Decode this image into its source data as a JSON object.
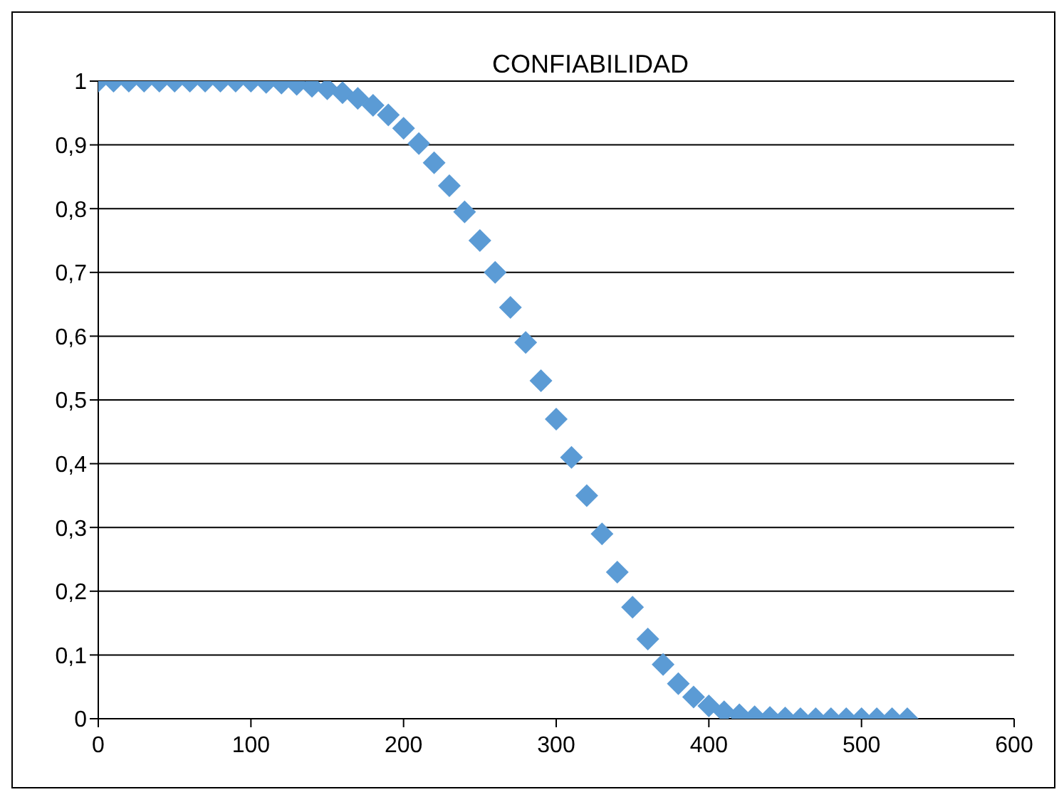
{
  "chart_data": {
    "type": "scatter",
    "title": "CONFIABILIDAD",
    "x": [
      0,
      10,
      20,
      30,
      40,
      50,
      60,
      70,
      80,
      90,
      100,
      110,
      120,
      130,
      140,
      150,
      160,
      170,
      180,
      190,
      200,
      210,
      220,
      230,
      240,
      250,
      260,
      270,
      280,
      290,
      300,
      310,
      320,
      330,
      340,
      350,
      360,
      370,
      380,
      390,
      400,
      410,
      420,
      430,
      440,
      450,
      460,
      470,
      480,
      490,
      500,
      510,
      520,
      530
    ],
    "series": [
      {
        "color": "#5b9bd5",
        "values": [
          1,
          1,
          1,
          1,
          1,
          1,
          1,
          1,
          1,
          1,
          1,
          0.998,
          0.997,
          0.995,
          0.992,
          0.988,
          0.982,
          0.973,
          0.962,
          0.947,
          0.926,
          0.902,
          0.872,
          0.836,
          0.795,
          0.75,
          0.7,
          0.645,
          0.59,
          0.53,
          0.47,
          0.41,
          0.35,
          0.29,
          0.23,
          0.175,
          0.125,
          0.085,
          0.055,
          0.034,
          0.02,
          0.011,
          0.006,
          0.003,
          0.002,
          0.001,
          0,
          0,
          0,
          0,
          0,
          0,
          0,
          0
        ]
      }
    ],
    "xlim": [
      0,
      600
    ],
    "xticks": [
      0,
      100,
      200,
      300,
      400,
      500,
      600
    ],
    "ylim": [
      0,
      1
    ],
    "yticks": [
      0,
      {
        "value": 0.1,
        "label": "0,1"
      },
      {
        "value": 0.2,
        "label": "0,2"
      },
      {
        "value": 0.3,
        "label": "0,3"
      },
      {
        "value": 0.4,
        "label": "0,4"
      },
      {
        "value": 0.5,
        "label": "0,5"
      },
      {
        "value": 0.6,
        "label": "0,6"
      },
      {
        "value": 0.7,
        "label": "0,7"
      },
      {
        "value": 0.8,
        "label": "0,8"
      },
      {
        "value": 0.9,
        "label": "0,9"
      },
      1
    ],
    "grid": "y",
    "legend": false,
    "marker": "diamond"
  }
}
